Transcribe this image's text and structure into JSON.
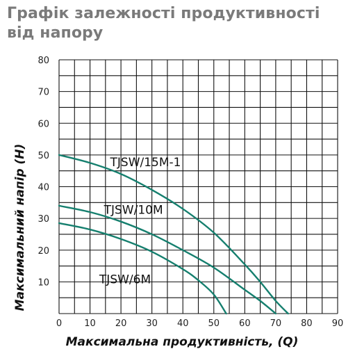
{
  "title": "Графік залежності продуктивності від напору",
  "colors": {
    "curve": "#157f6e",
    "grid": "#111111",
    "title": "#7a7a7a"
  },
  "chart_data": {
    "type": "line",
    "title": "Графік залежності продуктивності від напору",
    "xlabel": "Максимальна продуктивність, (Q)",
    "ylabel": "Максимальний напір (H)",
    "xlim": [
      0,
      90
    ],
    "ylim": [
      0,
      80
    ],
    "xticks": [
      0,
      10,
      20,
      30,
      40,
      50,
      60,
      70,
      80,
      90
    ],
    "yticks": [
      10,
      20,
      30,
      40,
      50,
      60,
      70,
      80
    ],
    "grid": true,
    "series": [
      {
        "name": "TJSW/15M-1",
        "x": [
          0,
          10,
          20,
          30,
          40,
          50,
          60,
          65,
          70,
          74
        ],
        "y": [
          50,
          47.5,
          44,
          39,
          33,
          25.5,
          15.5,
          10,
          4,
          0
        ]
      },
      {
        "name": "TJSW/10M",
        "x": [
          0,
          10,
          20,
          30,
          40,
          50,
          60,
          65,
          70
        ],
        "y": [
          34,
          32,
          29,
          25,
          20,
          14.5,
          7.5,
          4,
          0
        ]
      },
      {
        "name": "TJSW/6M",
        "x": [
          0,
          10,
          20,
          30,
          40,
          45,
          50,
          54
        ],
        "y": [
          28.5,
          26.5,
          23.5,
          19.5,
          14,
          10.5,
          6,
          0
        ]
      }
    ]
  }
}
